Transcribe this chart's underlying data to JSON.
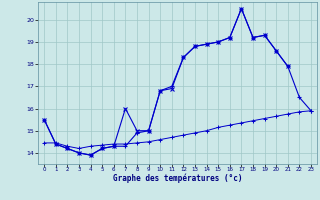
{
  "bg_color": "#cce8e8",
  "grid_color": "#a0c8c8",
  "line_color": "#0000cc",
  "xlim": [
    -0.5,
    23.5
  ],
  "ylim": [
    13.5,
    20.8
  ],
  "yticks": [
    14,
    15,
    16,
    17,
    18,
    19,
    20
  ],
  "xticks": [
    0,
    1,
    2,
    3,
    4,
    5,
    6,
    7,
    8,
    9,
    10,
    11,
    12,
    13,
    14,
    15,
    16,
    17,
    18,
    19,
    20,
    21,
    22,
    23
  ],
  "xlabel": "Graphe des températures (°c)",
  "line1_x": [
    0,
    1,
    2,
    3,
    4,
    5,
    6,
    7,
    8,
    9,
    10,
    11,
    12,
    13,
    14,
    15,
    16,
    17,
    18,
    19,
    20,
    21,
    22,
    23
  ],
  "line1_y": [
    15.5,
    14.4,
    14.2,
    14.0,
    13.9,
    14.2,
    14.3,
    14.3,
    14.9,
    15.0,
    16.8,
    17.0,
    18.3,
    18.8,
    18.9,
    19.0,
    19.2,
    20.5,
    19.2,
    19.3,
    18.6,
    17.9,
    16.5,
    15.9
  ],
  "line2_x": [
    0,
    1,
    2,
    3,
    4,
    5,
    6,
    7,
    8,
    9,
    10,
    11,
    12,
    13,
    14,
    15,
    16,
    17,
    18,
    19,
    20,
    21,
    22,
    23
  ],
  "line2_y": [
    15.5,
    14.4,
    14.2,
    14.0,
    13.9,
    14.2,
    14.3,
    16.0,
    15.0,
    15.0,
    16.8,
    16.9,
    18.3,
    18.8,
    18.9,
    19.0,
    19.2,
    20.5,
    19.2,
    19.3,
    18.6,
    17.9,
    null,
    null
  ],
  "line3_x": [
    0,
    1,
    2,
    3,
    4,
    5,
    6,
    7,
    8,
    9,
    10,
    11,
    12,
    13,
    14,
    15,
    16,
    17,
    18,
    19,
    20,
    21,
    22,
    23
  ],
  "line3_y": [
    14.45,
    14.45,
    14.3,
    14.2,
    14.3,
    14.35,
    14.4,
    14.4,
    14.45,
    14.5,
    14.6,
    14.7,
    14.8,
    14.9,
    15.0,
    15.15,
    15.25,
    15.35,
    15.45,
    15.55,
    15.65,
    15.75,
    15.85,
    15.9
  ]
}
